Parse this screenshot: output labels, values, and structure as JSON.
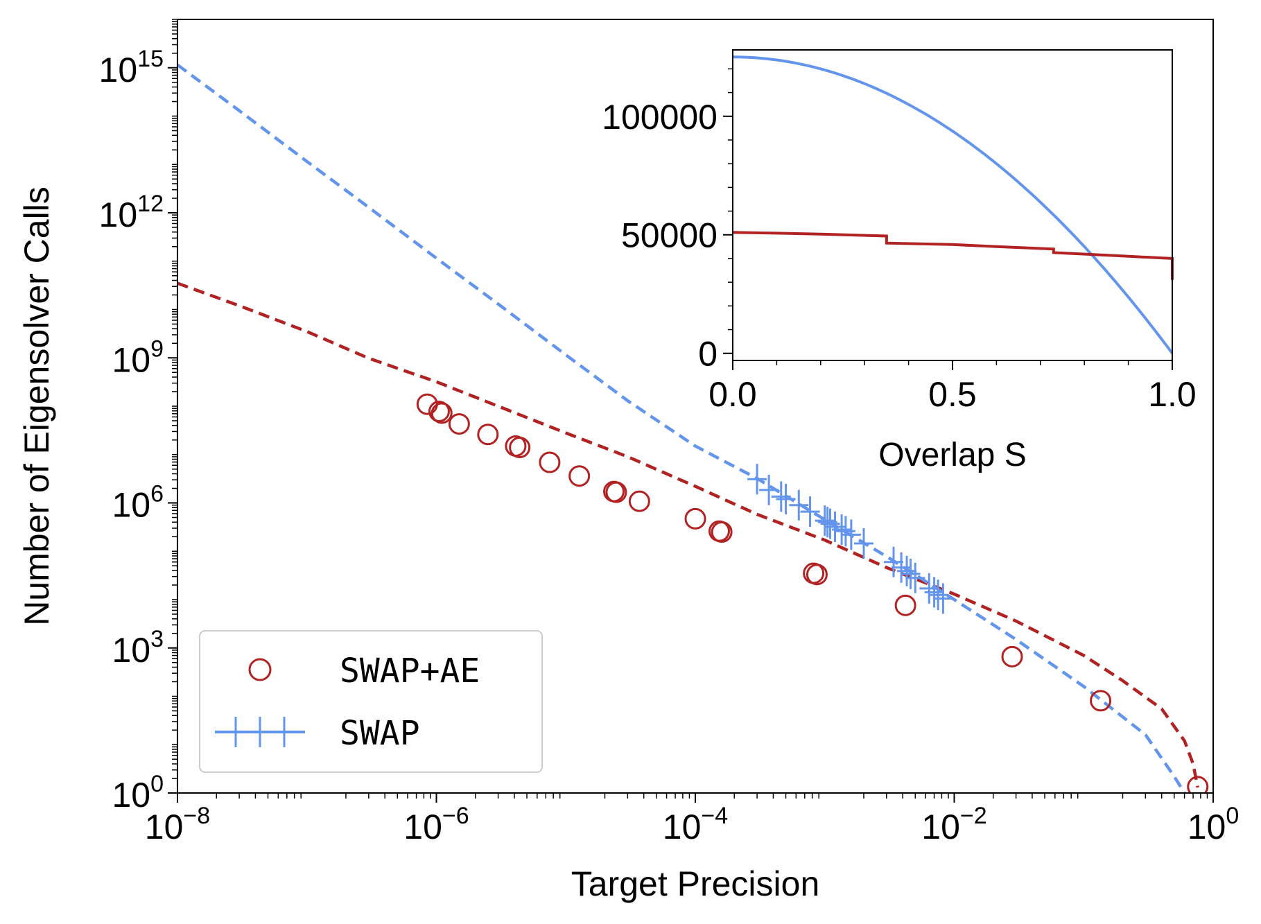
{
  "colors": {
    "red": "#b22222",
    "blue": "#6495ed",
    "axis": "#000000"
  },
  "chart_data": [
    {
      "type": "line",
      "xlabel": "Target Precision",
      "ylabel": "Number of Eigensolver Calls",
      "xscale": "log",
      "yscale": "log",
      "xlim": [
        1e-08,
        1
      ],
      "ylim": [
        1,
        1e+16
      ],
      "xticks": [
        {
          "value": 1e-08,
          "base": "10",
          "exp": "−8"
        },
        {
          "value": 1e-06,
          "base": "10",
          "exp": "−6"
        },
        {
          "value": 0.0001,
          "base": "10",
          "exp": "−4"
        },
        {
          "value": 0.01,
          "base": "10",
          "exp": "−2"
        },
        {
          "value": 1,
          "base": "10",
          "exp": "0"
        }
      ],
      "yticks": [
        {
          "value": 1,
          "base": "10",
          "exp": "0"
        },
        {
          "value": 1000.0,
          "base": "10",
          "exp": "3"
        },
        {
          "value": 1000000.0,
          "base": "10",
          "exp": "6"
        },
        {
          "value": 1000000000.0,
          "base": "10",
          "exp": "9"
        },
        {
          "value": 1000000000000.0,
          "base": "10",
          "exp": "12"
        },
        {
          "value": 1000000000000000.0,
          "base": "10",
          "exp": "15"
        }
      ],
      "legend": {
        "placement": "lower-left",
        "entries": [
          "SWAP+AE",
          "SWAP"
        ]
      },
      "series": [
        {
          "name": "SWAP+AE",
          "kind": "markers",
          "marker": "circle",
          "color": "#b22222",
          "points": [
            [
              8.5e-07,
              110000000.0
            ],
            [
              1.05e-06,
              78000000.0
            ],
            [
              1.1e-06,
              72000000.0
            ],
            [
              1.5e-06,
              43000000.0
            ],
            [
              2.5e-06,
              26000000.0
            ],
            [
              4.1e-06,
              15000000.0
            ],
            [
              4.4e-06,
              14000000.0
            ],
            [
              7.5e-06,
              6900000.0
            ],
            [
              1.27e-05,
              3600000.0
            ],
            [
              2.35e-05,
              1720000.0
            ],
            [
              2.45e-05,
              1660000.0
            ],
            [
              3.7e-05,
              1080000.0
            ],
            [
              0.0001,
              470000.0
            ],
            [
              0.000153,
              260000.0
            ],
            [
              0.00016,
              250000.0
            ],
            [
              0.00082,
              35000.0
            ],
            [
              0.00087,
              33000.0
            ],
            [
              0.0042,
              7600.0
            ],
            [
              0.028,
              660
            ],
            [
              0.135,
              81
            ],
            [
              0.76,
              1.35
            ]
          ]
        },
        {
          "name": "SWAP+AE (fit)",
          "kind": "dashed-line",
          "color": "#b22222",
          "points": [
            [
              1e-08,
              35000000000.0
            ],
            [
              3e-08,
              12000000000.0
            ],
            [
              1e-07,
              3500000000.0
            ],
            [
              3e-07,
              980000000.0
            ],
            [
              1e-06,
              320000000.0
            ],
            [
              3e-06,
              100000000.0
            ],
            [
              1e-05,
              28000000.0
            ],
            [
              3e-05,
              9000000.0
            ],
            [
              0.0001,
              2200000.0
            ],
            [
              0.0003,
              580000.0
            ],
            [
              0.001,
              170000.0
            ],
            [
              0.003,
              46000.0
            ],
            [
              0.01,
              13000.0
            ],
            [
              0.03,
              3600.0
            ],
            [
              0.1,
              700
            ],
            [
              0.2,
              210
            ],
            [
              0.4,
              55
            ],
            [
              0.6,
              12
            ],
            [
              0.7,
              4
            ],
            [
              0.76,
              1.3
            ]
          ]
        },
        {
          "name": "SWAP",
          "kind": "markers",
          "marker": "plus",
          "color": "#6495ed",
          "points": [
            [
              0.0003,
              3100000.0
            ],
            [
              0.00037,
              1850000.0
            ],
            [
              0.00046,
              1350000.0
            ],
            [
              0.0005,
              1200000.0
            ],
            [
              0.00063,
              900000.0
            ],
            [
              0.00077,
              660000.0
            ],
            [
              0.001,
              430000.0
            ],
            [
              0.00105,
              400000.0
            ],
            [
              0.0011,
              370000.0
            ],
            [
              0.0012,
              320000.0
            ],
            [
              0.00135,
              280000.0
            ],
            [
              0.00145,
              260000.0
            ],
            [
              0.0016,
              220000.0
            ],
            [
              0.002,
              145000.0
            ],
            [
              0.0034,
              60000.0
            ],
            [
              0.0039,
              46000.0
            ],
            [
              0.0043,
              39000.0
            ],
            [
              0.0046,
              34000.0
            ],
            [
              0.005,
              28000.0
            ],
            [
              0.0064,
              17000.0
            ],
            [
              0.007,
              14200.0
            ],
            [
              0.0075,
              12500.0
            ],
            [
              0.0082,
              10500.0
            ]
          ]
        },
        {
          "name": "SWAP (fit)",
          "kind": "dashed-line",
          "color": "#6495ed",
          "points": [
            [
              1e-08,
              1150000000000000.0
            ],
            [
              3e-08,
              130000000000000.0
            ],
            [
              1e-07,
              11500000000000.0
            ],
            [
              3e-07,
              1300000000000.0
            ],
            [
              1e-06,
              115000000000.0
            ],
            [
              3e-06,
              13000000000.0
            ],
            [
              1e-05,
              1150000000.0
            ],
            [
              3e-05,
              130000000.0
            ],
            [
              0.0001,
              15000000.0
            ],
            [
              0.0003,
              3200000.0
            ],
            [
              0.001,
              450000.0
            ],
            [
              0.003,
              78000.0
            ],
            [
              0.01,
              10000.0
            ],
            [
              0.03,
              1500.0
            ],
            [
              0.1,
              160
            ],
            [
              0.3,
              16
            ],
            [
              0.5,
              2.2
            ],
            [
              0.6,
              1
            ]
          ]
        }
      ]
    },
    {
      "type": "line",
      "inset": true,
      "xlabel": "Overlap S",
      "ylabel": "",
      "xlim": [
        0,
        1
      ],
      "ylim": [
        -3000,
        128000
      ],
      "xticks": [
        "0.0",
        "0.5",
        "1.0"
      ],
      "xtick_values": [
        0,
        0.5,
        1
      ],
      "yticks": [
        "0",
        "50000",
        "100000"
      ],
      "ytick_values": [
        0,
        50000,
        100000
      ],
      "series": [
        {
          "name": "SWAP",
          "color": "#6495ed",
          "curve": "quadratic",
          "y_at_0": 125000,
          "y_at_1": 0
        },
        {
          "name": "SWAP+AE",
          "color": "#b22222",
          "curve": "step",
          "points": [
            [
              0.0,
              51000
            ],
            [
              0.1,
              50700
            ],
            [
              0.2,
              50300
            ],
            [
              0.35,
              49500
            ],
            [
              0.35,
              46500
            ],
            [
              0.5,
              45900
            ],
            [
              0.6,
              45000
            ],
            [
              0.73,
              44000
            ],
            [
              0.73,
              42500
            ],
            [
              0.87,
              41200
            ],
            [
              1.0,
              40000
            ],
            [
              1.0,
              31000
            ]
          ]
        }
      ]
    }
  ]
}
